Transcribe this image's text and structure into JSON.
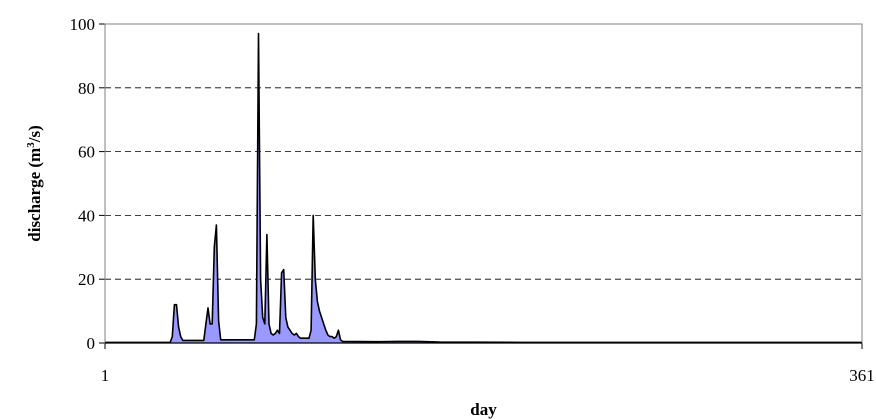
{
  "chart_data": {
    "type": "area",
    "xlabel": "day",
    "ylabel_main": "discharge (m",
    "ylabel_sup": "3",
    "ylabel_tail": "/s)",
    "xlim": [
      1,
      361
    ],
    "ylim": [
      0,
      100
    ],
    "x_ticks": [
      1,
      361
    ],
    "y_ticks": [
      0,
      20,
      40,
      60,
      80,
      100
    ],
    "grid": "horizontal-dashed",
    "fill_color": "#9999FF",
    "line_color": "#000000",
    "series": [
      {
        "points": [
          [
            1,
            0.2
          ],
          [
            32,
            0.2
          ],
          [
            33,
            2
          ],
          [
            34,
            12
          ],
          [
            35,
            12
          ],
          [
            36,
            5
          ],
          [
            37,
            2
          ],
          [
            38,
            0.8
          ],
          [
            48,
            0.8
          ],
          [
            49,
            6
          ],
          [
            50,
            11
          ],
          [
            51,
            6
          ],
          [
            52,
            6
          ],
          [
            53,
            30
          ],
          [
            54,
            37
          ],
          [
            55,
            7
          ],
          [
            56,
            1
          ],
          [
            72,
            1
          ],
          [
            73,
            6
          ],
          [
            74,
            97
          ],
          [
            75,
            20
          ],
          [
            76,
            8
          ],
          [
            77,
            6
          ],
          [
            78,
            34
          ],
          [
            79,
            6
          ],
          [
            80,
            3
          ],
          [
            81,
            2.5
          ],
          [
            82,
            3
          ],
          [
            83,
            4
          ],
          [
            84,
            3
          ],
          [
            85,
            22
          ],
          [
            86,
            23
          ],
          [
            87,
            8
          ],
          [
            88,
            5
          ],
          [
            89,
            4
          ],
          [
            90,
            3
          ],
          [
            91,
            2.5
          ],
          [
            92,
            3
          ],
          [
            93,
            2
          ],
          [
            94,
            1.5
          ],
          [
            98,
            1.5
          ],
          [
            99,
            4
          ],
          [
            100,
            40
          ],
          [
            101,
            20
          ],
          [
            102,
            13
          ],
          [
            103,
            10
          ],
          [
            104,
            8
          ],
          [
            105,
            6
          ],
          [
            106,
            4
          ],
          [
            107,
            2.5
          ],
          [
            108,
            2
          ],
          [
            109,
            2
          ],
          [
            110,
            1.5
          ],
          [
            111,
            2
          ],
          [
            112,
            4
          ],
          [
            113,
            1
          ],
          [
            114,
            0.5
          ],
          [
            130,
            0.4
          ],
          [
            140,
            0.5
          ],
          [
            150,
            0.5
          ],
          [
            160,
            0.3
          ],
          [
            200,
            0.2
          ],
          [
            361,
            0.2
          ]
        ]
      }
    ]
  }
}
